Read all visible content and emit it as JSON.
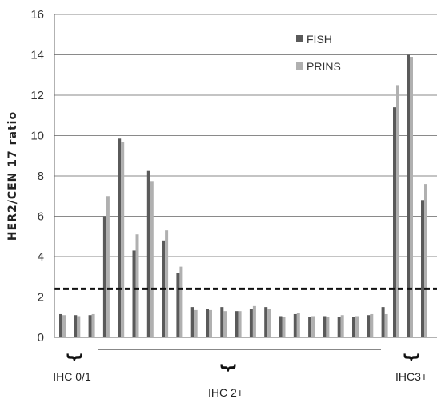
{
  "chart_data": {
    "type": "bar",
    "ylabel": "HER2/CEN 17 ratio",
    "ylim": [
      0,
      16
    ],
    "yticks": [
      0,
      2,
      4,
      6,
      8,
      10,
      12,
      14,
      16
    ],
    "grid": true,
    "legend_position": "top-right",
    "threshold": 2.4,
    "series": [
      {
        "name": "FISH",
        "color": "#5a5a5a",
        "values": [
          1.15,
          1.1,
          1.1,
          6.0,
          9.85,
          4.3,
          8.25,
          4.8,
          3.2,
          1.5,
          1.4,
          1.5,
          1.3,
          1.4,
          1.5,
          1.05,
          1.15,
          1.0,
          1.05,
          1.0,
          1.0,
          1.1,
          1.5,
          11.4,
          14.0,
          6.8
        ]
      },
      {
        "name": "PRINS",
        "color": "#b0b0b0",
        "values": [
          1.1,
          1.05,
          1.15,
          7.0,
          9.7,
          5.1,
          7.75,
          5.3,
          3.5,
          1.35,
          1.35,
          1.3,
          1.3,
          1.55,
          1.4,
          1.0,
          1.2,
          1.05,
          1.0,
          1.1,
          1.05,
          1.15,
          1.15,
          12.5,
          13.9,
          7.6
        ]
      }
    ],
    "groups": [
      {
        "label": "IHC 0/1"
      },
      {
        "label": "IHC 2+"
      },
      {
        "label": "IHC3+"
      }
    ]
  }
}
